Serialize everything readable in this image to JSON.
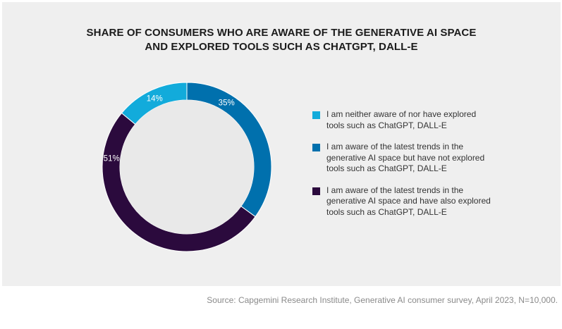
{
  "title": {
    "line1": "SHARE OF CONSUMERS WHO ARE AWARE OF THE GENERATIVE AI SPACE",
    "line2": "AND EXPLORED TOOLS SUCH AS CHATGPT, DALL-E"
  },
  "source": "Source: Capgemini Research Institute, Generative AI consumer survey, April 2023, N=10,000.",
  "chart_data": {
    "type": "pie",
    "donut": true,
    "title": "SHARE OF CONSUMERS WHO ARE AWARE OF THE GENERATIVE AI SPACE AND EXPLORED TOOLS SUCH AS CHATGPT, DALL-E",
    "legend_position": "right",
    "slices": [
      {
        "label": "I am neither aware of nor have explored\ntools such as ChatGPT, DALL-E",
        "value": 14,
        "value_label": "14%",
        "color": "#12abdb"
      },
      {
        "label": "I am aware of the latest trends in the\ngenerative AI space but have not explored\ntools such as ChatGPT, DALL-E",
        "value": 35,
        "value_label": "35%",
        "color": "#0070ad"
      },
      {
        "label": "I am aware of the latest trends in the\ngenerative AI space and have also explored\ntools such as ChatGPT, DALL-E",
        "value": 51,
        "value_label": "51%",
        "color": "#2b0a3d"
      }
    ]
  }
}
